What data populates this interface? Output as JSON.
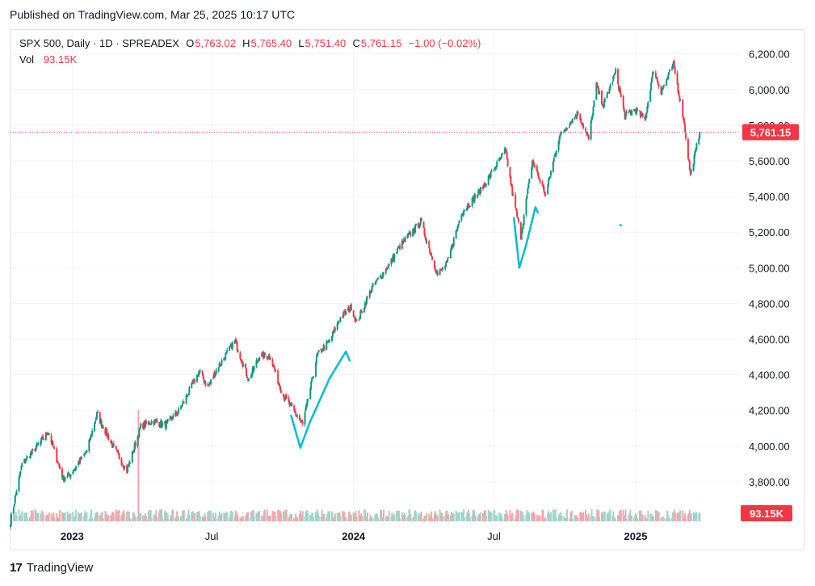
{
  "published": "Published on TradingView.com, Mar 25, 2025 10:17 UTC",
  "legend": {
    "symbol": "SPX 500, Daily · 1D · SPREADEX",
    "open_label": "O",
    "open": "5,763.02",
    "high_label": "H",
    "high": "5,765.40",
    "low_label": "L",
    "low": "5,751.40",
    "close_label": "C",
    "close": "5,761.15",
    "change": "−1.00 (−0.02%)",
    "vol_label": "Vol",
    "vol": "93.15K"
  },
  "footer": {
    "brand": "TradingView",
    "logo_text": "17"
  },
  "colors": {
    "up": "#089981",
    "down": "#f23645",
    "volume_up": "#9ed6cc",
    "volume_down": "#f5a5ab",
    "drawing": "#00bcd4",
    "grid": "#f0f3fa"
  },
  "chart_data": {
    "type": "candlestick",
    "y_axis": {
      "ticks": [
        "3,800.00",
        "4,000.00",
        "4,200.00",
        "4,400.00",
        "4,600.00",
        "4,800.00",
        "5,000.00",
        "5,200.00",
        "5,400.00",
        "5,600.00",
        "5,800.00",
        "6,000.00",
        "6,200.00"
      ],
      "tick_values": [
        3800,
        4000,
        4200,
        4400,
        4600,
        4800,
        5000,
        5200,
        5400,
        5600,
        5800,
        6000,
        6200
      ],
      "range": [
        3700,
        6330
      ]
    },
    "x_axis": {
      "ticks": [
        {
          "label": "2023",
          "date": "2023-01-01",
          "bold": true
        },
        {
          "label": "Jul",
          "date": "2023-07-01",
          "bold": false
        },
        {
          "label": "2024",
          "date": "2024-01-01",
          "bold": true
        },
        {
          "label": "Jul",
          "date": "2024-07-01",
          "bold": false
        },
        {
          "label": "2025",
          "date": "2025-01-01",
          "bold": true
        }
      ],
      "range": [
        "2022-10-13",
        "2025-05-13"
      ]
    },
    "last_price": 5761.15,
    "last_price_label": "5,761.15",
    "last_volume_label": "93.15K",
    "path": [
      [
        "2022-10-13",
        3580
      ],
      [
        "2022-10-28",
        3900
      ],
      [
        "2022-11-15",
        3990
      ],
      [
        "2022-12-01",
        4080
      ],
      [
        "2022-12-20",
        3820
      ],
      [
        "2022-12-29",
        3840
      ],
      [
        "2023-01-20",
        3970
      ],
      [
        "2023-02-02",
        4180
      ],
      [
        "2023-02-20",
        4020
      ],
      [
        "2023-03-13",
        3860
      ],
      [
        "2023-03-31",
        4110
      ],
      [
        "2023-04-15",
        4140
      ],
      [
        "2023-05-02",
        4120
      ],
      [
        "2023-05-20",
        4200
      ],
      [
        "2023-06-15",
        4420
      ],
      [
        "2023-06-26",
        4330
      ],
      [
        "2023-07-10",
        4450
      ],
      [
        "2023-07-31",
        4590
      ],
      [
        "2023-08-18",
        4370
      ],
      [
        "2023-09-01",
        4510
      ],
      [
        "2023-09-15",
        4500
      ],
      [
        "2023-10-01",
        4290
      ],
      [
        "2023-10-27",
        4120
      ],
      [
        "2023-11-15",
        4510
      ],
      [
        "2023-12-01",
        4590
      ],
      [
        "2023-12-15",
        4720
      ],
      [
        "2023-12-29",
        4780
      ],
      [
        "2024-01-05",
        4690
      ],
      [
        "2024-01-25",
        4890
      ],
      [
        "2024-02-15",
        5010
      ],
      [
        "2024-03-01",
        5120
      ],
      [
        "2024-03-28",
        5260
      ],
      [
        "2024-04-19",
        4960
      ],
      [
        "2024-05-01",
        5020
      ],
      [
        "2024-05-20",
        5310
      ],
      [
        "2024-06-15",
        5440
      ],
      [
        "2024-07-16",
        5660
      ],
      [
        "2024-07-25",
        5420
      ],
      [
        "2024-08-05",
        5180
      ],
      [
        "2024-08-20",
        5600
      ],
      [
        "2024-09-06",
        5410
      ],
      [
        "2024-09-24",
        5740
      ],
      [
        "2024-10-18",
        5870
      ],
      [
        "2024-11-01",
        5720
      ],
      [
        "2024-11-11",
        6020
      ],
      [
        "2024-11-20",
        5910
      ],
      [
        "2024-12-06",
        6100
      ],
      [
        "2024-12-18",
        5850
      ],
      [
        "2024-12-31",
        5890
      ],
      [
        "2025-01-13",
        5830
      ],
      [
        "2025-01-24",
        6110
      ],
      [
        "2025-02-03",
        5990
      ],
      [
        "2025-02-19",
        6140
      ],
      [
        "2025-03-04",
        5840
      ],
      [
        "2025-03-13",
        5520
      ],
      [
        "2025-03-18",
        5620
      ],
      [
        "2025-03-25",
        5761.15
      ]
    ]
  },
  "drawings": [
    {
      "name": "drawn-check-left",
      "points": [
        [
          "2023-10-12",
          4170
        ],
        [
          "2023-10-24",
          3990
        ],
        [
          "2023-11-05",
          4130
        ],
        [
          "2023-12-01",
          4380
        ],
        [
          "2023-12-22",
          4530
        ],
        [
          "2023-12-27",
          4480
        ]
      ]
    },
    {
      "name": "drawn-check-right",
      "points": [
        [
          "2024-07-27",
          5280
        ],
        [
          "2024-08-03",
          5000
        ],
        [
          "2024-08-12",
          5130
        ],
        [
          "2024-08-24",
          5340
        ],
        [
          "2024-08-27",
          5310
        ]
      ]
    },
    {
      "name": "drawn-dot",
      "points": [
        [
          "2024-12-12",
          5240
        ],
        [
          "2024-12-13",
          5238
        ]
      ]
    }
  ]
}
